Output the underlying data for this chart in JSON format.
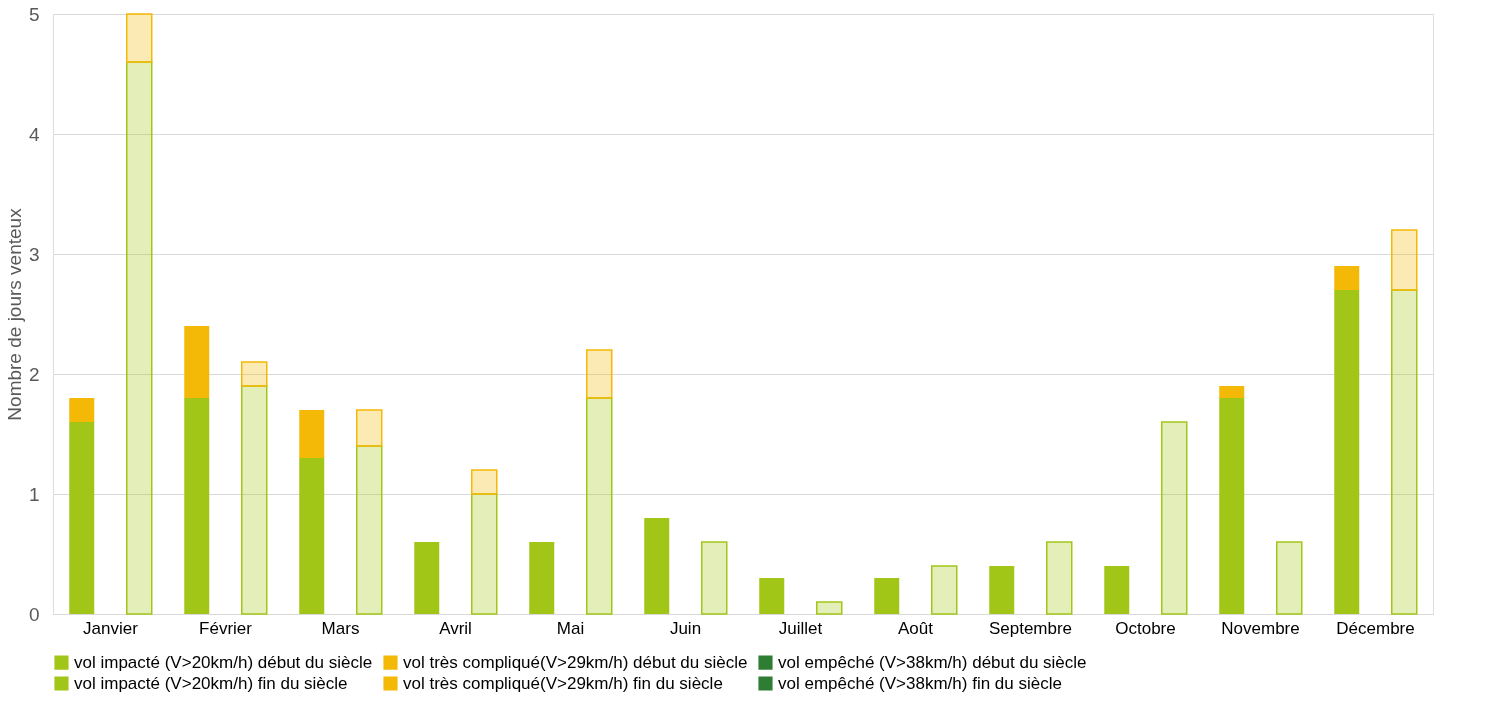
{
  "chart_data": {
    "type": "bar",
    "stacked": true,
    "ylabel": "Nombre de jours venteux",
    "categories": [
      "Janvier",
      null,
      "Février",
      null,
      "Mars",
      null,
      "Avril",
      null,
      "Mai",
      null,
      "Juin",
      null,
      "Juillet",
      null,
      "Août",
      null,
      "Septembre",
      null,
      "Octobre",
      null,
      "Novembre",
      null,
      "Décembre",
      null
    ],
    "series": [
      {
        "name": "vol impacté (V>20km/h) début du siècle",
        "color": "#a2c617",
        "values": [
          1.6,
          null,
          1.8,
          null,
          1.3,
          null,
          0.6,
          null,
          0.6,
          null,
          0.8,
          null,
          0.3,
          null,
          0.3,
          null,
          0.4,
          null,
          0.4,
          null,
          1.8,
          null,
          2.7,
          null
        ]
      },
      {
        "name": "vol très compliqué(V>29km/h) début du siècle",
        "color": "#f4b906",
        "values": [
          0.2,
          null,
          0.6,
          null,
          0.4,
          null,
          0,
          null,
          0,
          null,
          0,
          null,
          0,
          null,
          0,
          null,
          0,
          null,
          0,
          null,
          0.1,
          null,
          0.2,
          null
        ]
      },
      {
        "name": "vol empêché (V>38km/h) début du siècle",
        "color": "#2e7d32",
        "values": [
          0,
          null,
          0,
          null,
          0,
          null,
          0,
          null,
          0,
          null,
          0,
          null,
          0,
          null,
          0,
          null,
          0,
          null,
          0,
          null,
          0,
          null,
          0,
          null
        ]
      },
      {
        "name": "vol impacté (V>20km/h) fin du siècle",
        "color": "#a2c617",
        "values": [
          null,
          4.6,
          null,
          1.9,
          null,
          1.4,
          null,
          1.0,
          null,
          1.8,
          null,
          0.6,
          null,
          0.1,
          null,
          0.4,
          null,
          0.6,
          null,
          1.6,
          null,
          0.6,
          null,
          2.7
        ]
      },
      {
        "name": "vol très compliqué(V>29km/h) fin du siècle",
        "color": "#f4b906",
        "values": [
          null,
          0.4,
          null,
          0.2,
          null,
          0.3,
          null,
          0.2,
          null,
          0.4,
          null,
          0,
          null,
          0,
          null,
          0,
          null,
          0,
          null,
          0,
          null,
          0,
          null,
          0.5
        ]
      },
      {
        "name": "vol empêché (V>38km/h) fin du siècle",
        "color": "#2e7d32",
        "values": [
          null,
          0,
          null,
          0,
          null,
          0,
          null,
          0,
          null,
          0,
          null,
          0,
          null,
          0,
          null,
          0,
          null,
          0,
          null,
          0,
          null,
          0,
          null,
          0
        ]
      }
    ],
    "ylim": [
      0,
      5
    ],
    "yticks": [
      0,
      1,
      2,
      3,
      4,
      5
    ],
    "grid": "y",
    "legend": "bottom"
  }
}
